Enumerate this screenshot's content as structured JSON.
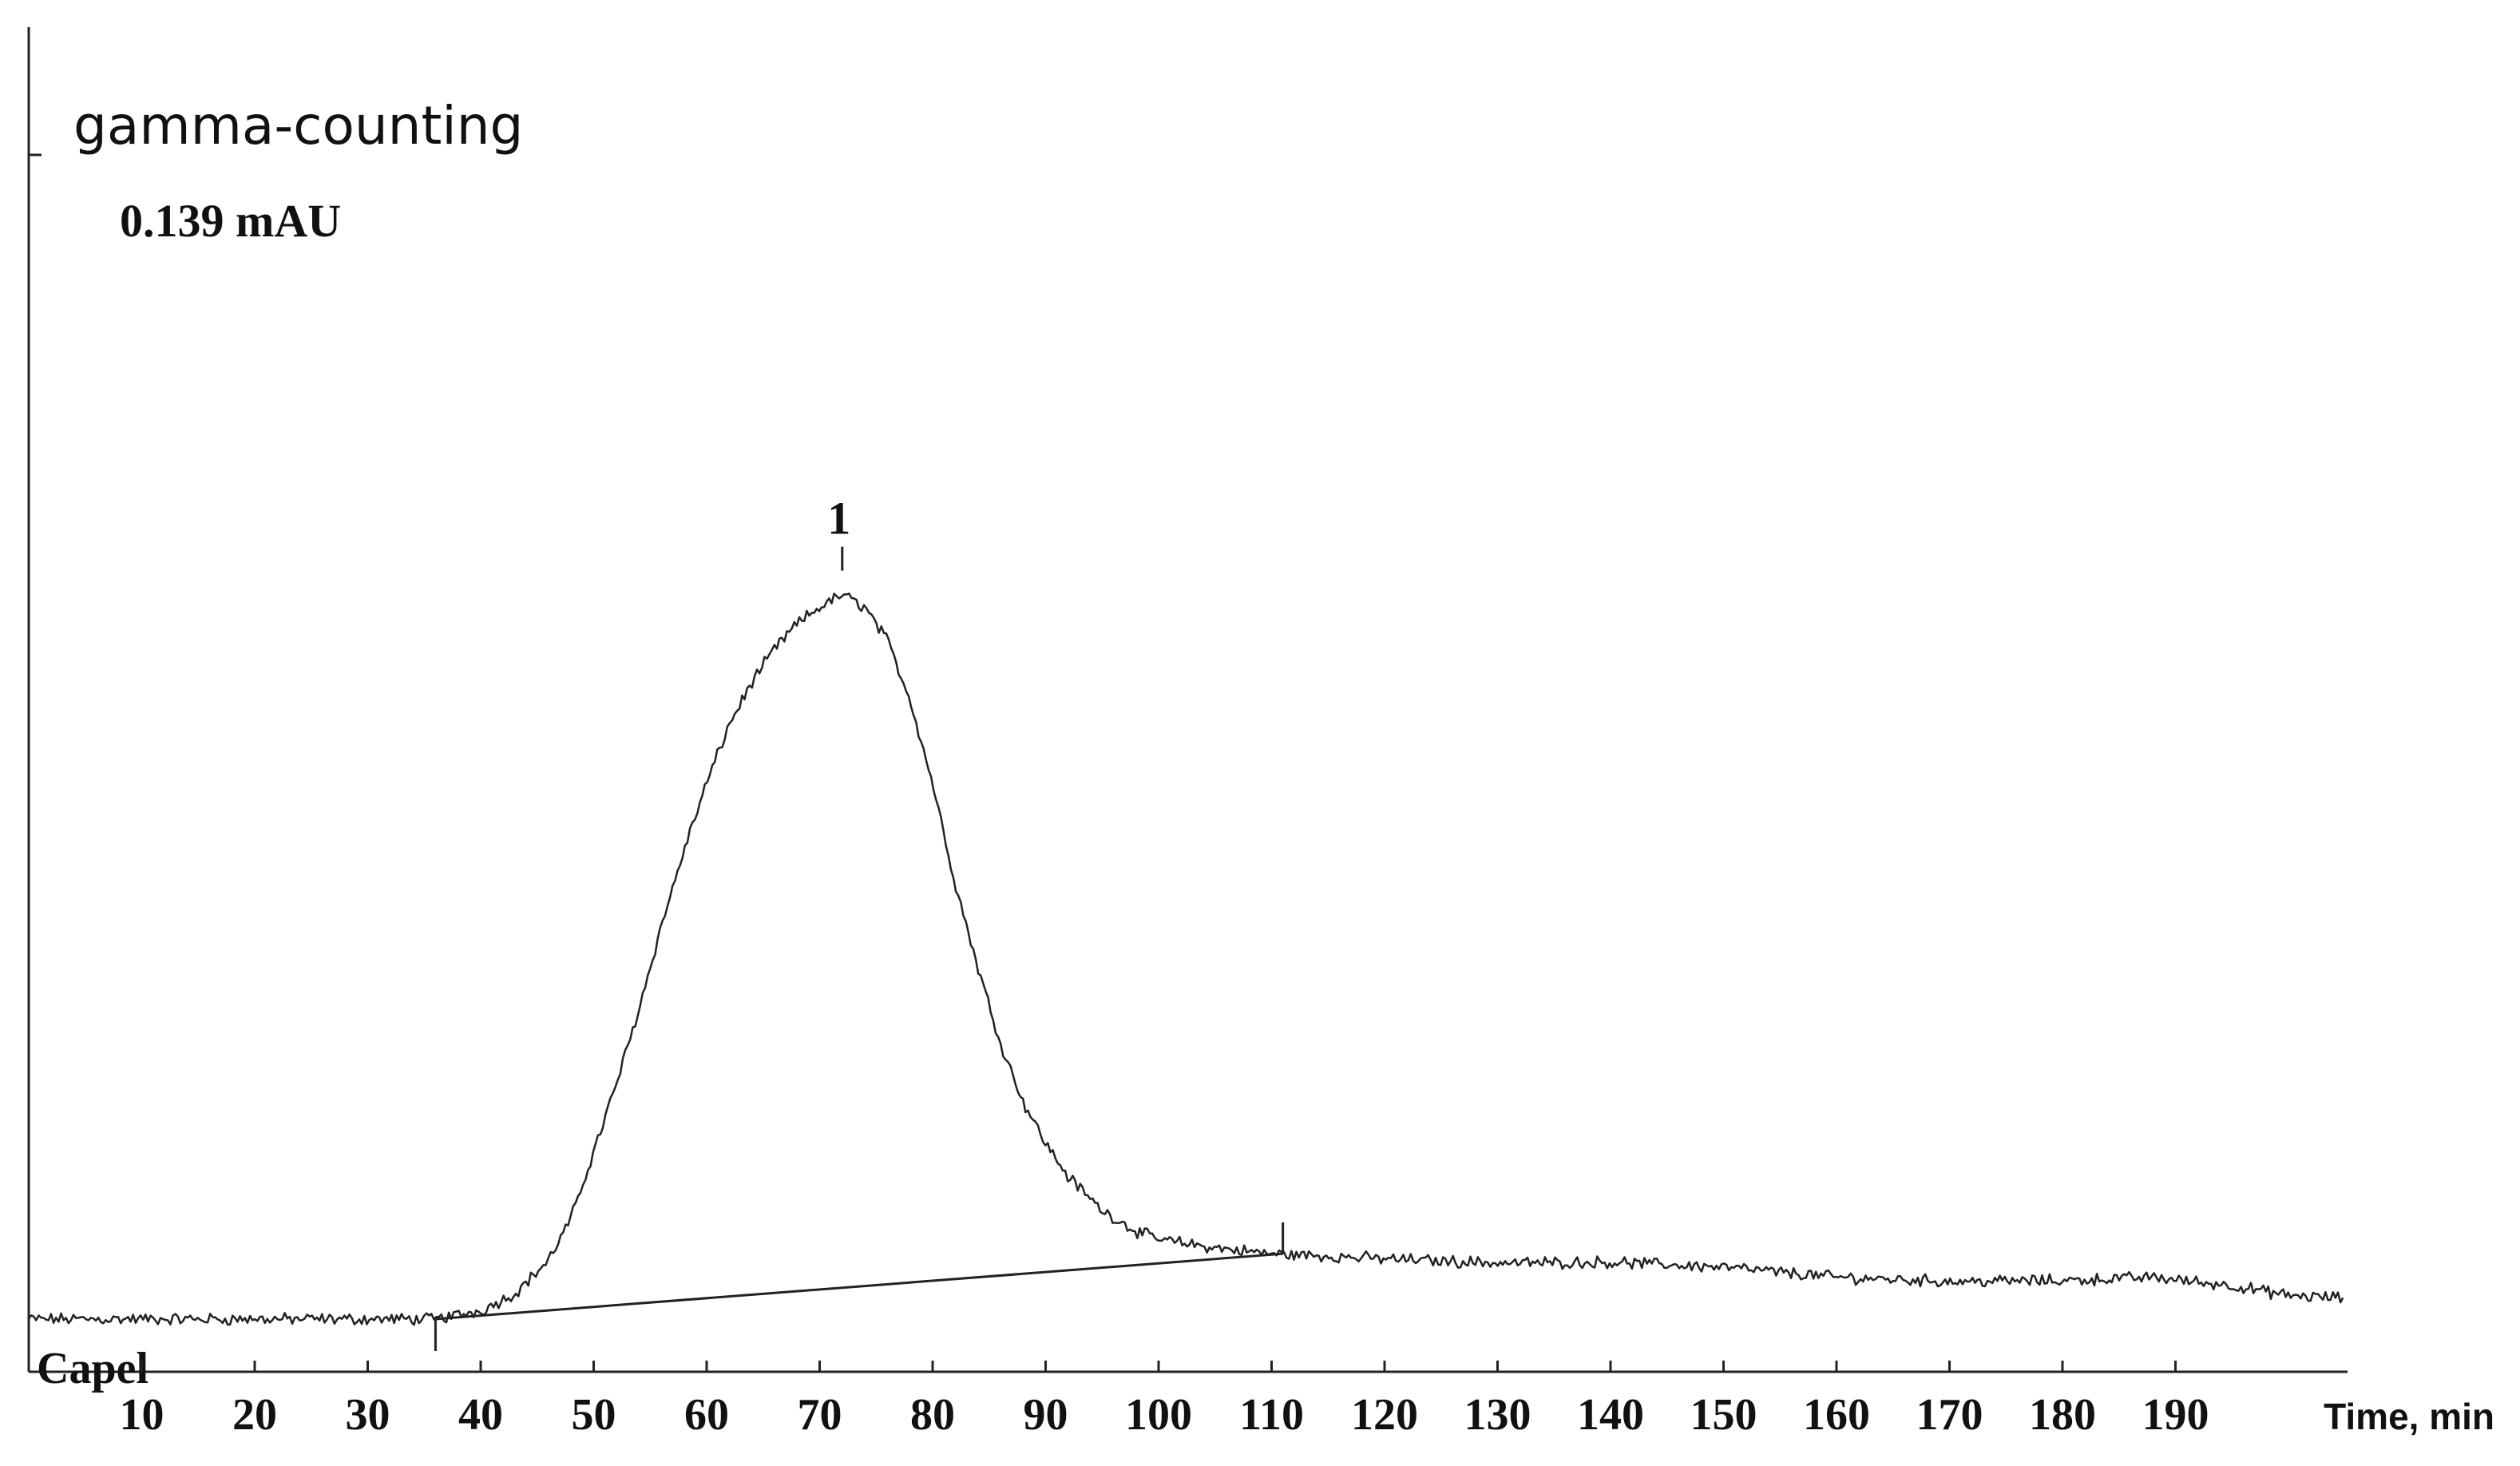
{
  "chart_data": {
    "type": "line",
    "title": "gamma-counting",
    "scale_label": "0.139 mAU",
    "xlabel": "Time, min",
    "ylabel": "",
    "channel_label": "Capel",
    "xlim": [
      0,
      205
    ],
    "ylim": [
      0,
      0.139
    ],
    "x_ticks": [
      10,
      20,
      30,
      40,
      50,
      60,
      70,
      80,
      90,
      100,
      110,
      120,
      130,
      140,
      150,
      160,
      170,
      180,
      190
    ],
    "grid": false,
    "legend": "none",
    "series": [
      {
        "x": [
          0,
          10,
          20,
          30,
          36,
          40,
          43,
          46,
          48,
          50,
          52,
          54,
          56,
          58,
          60,
          62,
          64,
          66,
          68,
          70,
          72,
          74,
          76,
          78,
          80,
          82,
          84,
          86,
          88,
          90,
          92,
          95,
          98,
          100,
          105,
          110,
          115,
          120,
          130,
          140,
          150,
          160,
          170,
          180,
          188,
          195,
          200,
          205
        ],
        "y": [
          0.0,
          0.0,
          0.0,
          0.0,
          0.0,
          0.001,
          0.003,
          0.007,
          0.012,
          0.02,
          0.028,
          0.037,
          0.047,
          0.056,
          0.064,
          0.071,
          0.076,
          0.08,
          0.083,
          0.085,
          0.0865,
          0.085,
          0.081,
          0.074,
          0.064,
          0.052,
          0.042,
          0.033,
          0.026,
          0.021,
          0.017,
          0.013,
          0.0105,
          0.0095,
          0.0085,
          0.0078,
          0.0075,
          0.0072,
          0.0067,
          0.0068,
          0.0062,
          0.005,
          0.0045,
          0.0046,
          0.005,
          0.004,
          0.0028,
          0.0025
        ]
      }
    ],
    "baseline": {
      "x": [
        36,
        111
      ],
      "y": [
        0.0,
        0.0078
      ]
    },
    "integration_marks": [
      36,
      111
    ],
    "peaks": [
      {
        "label": "1",
        "x": 72,
        "y": 0.0865
      }
    ]
  }
}
